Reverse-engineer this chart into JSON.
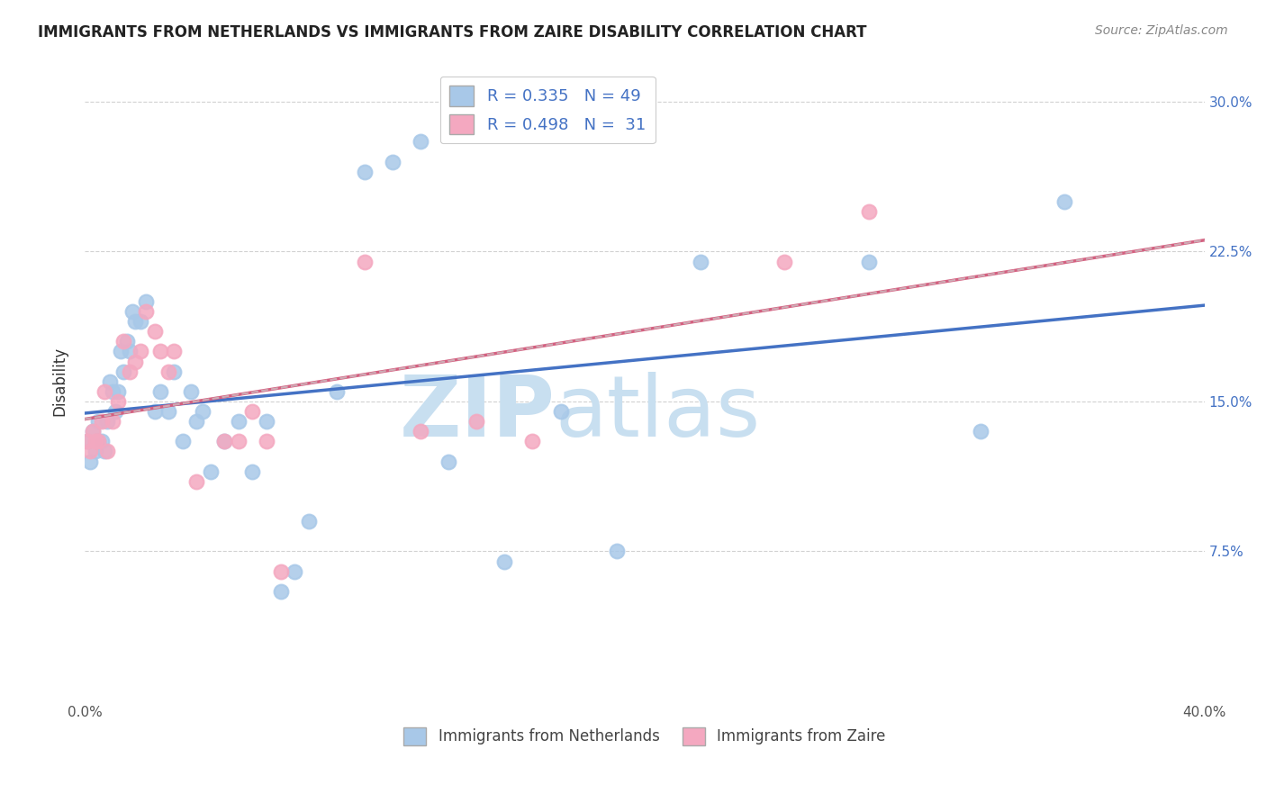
{
  "title": "IMMIGRANTS FROM NETHERLANDS VS IMMIGRANTS FROM ZAIRE DISABILITY CORRELATION CHART",
  "source": "Source: ZipAtlas.com",
  "ylabel": "Disability",
  "xlim": [
    0.0,
    0.4
  ],
  "ylim": [
    0.0,
    0.32
  ],
  "yticks": [
    0.075,
    0.15,
    0.225,
    0.3
  ],
  "ytick_labels": [
    "7.5%",
    "15.0%",
    "22.5%",
    "30.0%"
  ],
  "netherlands_R": 0.335,
  "netherlands_N": 49,
  "zaire_R": 0.498,
  "zaire_N": 31,
  "netherlands_color": "#a8c8e8",
  "zaire_color": "#f4a8c0",
  "netherlands_line_color": "#4472c4",
  "zaire_line_color": "#d46080",
  "netherlands_x": [
    0.001,
    0.002,
    0.003,
    0.004,
    0.005,
    0.005,
    0.006,
    0.007,
    0.008,
    0.009,
    0.01,
    0.011,
    0.012,
    0.013,
    0.014,
    0.015,
    0.016,
    0.017,
    0.018,
    0.02,
    0.022,
    0.025,
    0.027,
    0.03,
    0.032,
    0.035,
    0.038,
    0.04,
    0.042,
    0.045,
    0.05,
    0.055,
    0.06,
    0.065,
    0.07,
    0.075,
    0.08,
    0.09,
    0.1,
    0.11,
    0.12,
    0.13,
    0.15,
    0.17,
    0.19,
    0.22,
    0.28,
    0.32,
    0.35
  ],
  "netherlands_y": [
    0.13,
    0.12,
    0.135,
    0.125,
    0.13,
    0.14,
    0.13,
    0.125,
    0.14,
    0.16,
    0.155,
    0.145,
    0.155,
    0.175,
    0.165,
    0.18,
    0.175,
    0.195,
    0.19,
    0.19,
    0.2,
    0.145,
    0.155,
    0.145,
    0.165,
    0.13,
    0.155,
    0.14,
    0.145,
    0.115,
    0.13,
    0.14,
    0.115,
    0.14,
    0.055,
    0.065,
    0.09,
    0.155,
    0.265,
    0.27,
    0.28,
    0.12,
    0.07,
    0.145,
    0.075,
    0.22,
    0.22,
    0.135,
    0.25
  ],
  "zaire_x": [
    0.001,
    0.002,
    0.003,
    0.004,
    0.005,
    0.006,
    0.007,
    0.008,
    0.01,
    0.012,
    0.014,
    0.016,
    0.018,
    0.02,
    0.022,
    0.025,
    0.027,
    0.03,
    0.032,
    0.04,
    0.05,
    0.055,
    0.06,
    0.065,
    0.07,
    0.1,
    0.12,
    0.14,
    0.16,
    0.25,
    0.28
  ],
  "zaire_y": [
    0.13,
    0.125,
    0.135,
    0.13,
    0.13,
    0.14,
    0.155,
    0.125,
    0.14,
    0.15,
    0.18,
    0.165,
    0.17,
    0.175,
    0.195,
    0.185,
    0.175,
    0.165,
    0.175,
    0.11,
    0.13,
    0.13,
    0.145,
    0.13,
    0.065,
    0.22,
    0.135,
    0.14,
    0.13,
    0.22,
    0.245
  ],
  "background_color": "#ffffff",
  "grid_color": "#cccccc",
  "watermark_zip": "ZIP",
  "watermark_atlas": "atlas",
  "watermark_color": "#c8dff0"
}
